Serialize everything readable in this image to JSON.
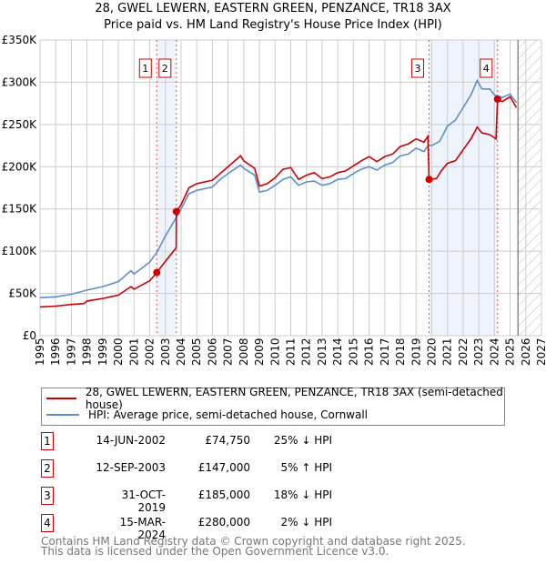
{
  "chart_data": {
    "type": "line",
    "title": "28, GWEL LEWERN, EASTERN GREEN, PENZANCE, TR18 3AX",
    "subtitle": "Price paid vs. HM Land Registry's House Price Index (HPI)",
    "xlim": [
      1995,
      2027
    ],
    "ylim": [
      0,
      350000
    ],
    "y_ticks": [
      {
        "v": 0,
        "label": "£0"
      },
      {
        "v": 50000,
        "label": "£50K"
      },
      {
        "v": 100000,
        "label": "£100K"
      },
      {
        "v": 150000,
        "label": "£150K"
      },
      {
        "v": 200000,
        "label": "£200K"
      },
      {
        "v": 250000,
        "label": "£250K"
      },
      {
        "v": 300000,
        "label": "£300K"
      },
      {
        "v": 350000,
        "label": "£350K"
      }
    ],
    "x_ticks": [
      "1995",
      "1996",
      "1997",
      "1998",
      "1999",
      "2000",
      "2001",
      "2002",
      "2003",
      "2004",
      "2005",
      "2006",
      "2007",
      "2008",
      "2009",
      "2010",
      "2011",
      "2012",
      "2013",
      "2014",
      "2015",
      "2016",
      "2017",
      "2018",
      "2019",
      "2020",
      "2021",
      "2022",
      "2023",
      "2024",
      "2025",
      "2026",
      "2027"
    ],
    "forecast_start": 2025.5,
    "shaded_ranges": [
      [
        2002.45,
        2003.7
      ],
      [
        2019.83,
        2024.2
      ]
    ],
    "series": [
      {
        "name": "28, GWEL LEWERN, EASTERN GREEN, PENZANCE, TR18 3AX (semi-detached house)",
        "color": "#cc0000",
        "x": [
          1995,
          1996,
          1997,
          1997.8,
          1998,
          1999,
          2000,
          2000.8,
          2001,
          2001.5,
          2002,
          2002.45,
          2003,
          2003.69,
          2003.7,
          2004,
          2004.5,
          2005,
          2006,
          2006.5,
          2007,
          2007.8,
          2008,
          2008.7,
          2009,
          2009.5,
          2010,
          2010.5,
          2011,
          2011.5,
          2012,
          2012.5,
          2013,
          2013.5,
          2014,
          2014.5,
          2015,
          2015.5,
          2016,
          2016.5,
          2017,
          2017.5,
          2018,
          2018.5,
          2019,
          2019.5,
          2019.75,
          2019.83,
          2020.3,
          2020.6,
          2021,
          2021.5,
          2022,
          2022.5,
          2022.9,
          2023.2,
          2023.7,
          2024.1,
          2024.2,
          2024.5,
          2025,
          2025.4
        ],
        "y": [
          34000,
          35000,
          37000,
          38000,
          41000,
          44000,
          48000,
          58000,
          55000,
          60000,
          65000,
          74750,
          88000,
          104000,
          147000,
          155000,
          175000,
          180000,
          184000,
          192000,
          200000,
          213000,
          207000,
          198000,
          177000,
          180000,
          187000,
          197000,
          199000,
          185000,
          190000,
          193000,
          186000,
          188000,
          193000,
          195000,
          201000,
          207000,
          212000,
          206000,
          212000,
          215000,
          224000,
          227000,
          233000,
          229000,
          236000,
          185000,
          186000,
          195000,
          204000,
          207000,
          220000,
          233000,
          247000,
          240000,
          238000,
          233000,
          280000,
          277000,
          283000,
          270000
        ]
      },
      {
        "name": "HPI: Average price, semi-detached house, Cornwall",
        "color": "#5b8fd0",
        "x": [
          1995,
          1996,
          1997,
          1998,
          1999,
          2000,
          2000.8,
          2001,
          2001.5,
          2002,
          2002.5,
          2003,
          2003.7,
          2004,
          2004.5,
          2005,
          2006,
          2006.5,
          2007,
          2007.8,
          2008,
          2008.7,
          2009,
          2009.5,
          2010,
          2010.5,
          2011,
          2011.5,
          2012,
          2012.5,
          2013,
          2013.5,
          2014,
          2014.5,
          2015,
          2015.5,
          2016,
          2016.5,
          2017,
          2017.5,
          2018,
          2018.5,
          2019,
          2019.5,
          2019.8,
          2020,
          2020.5,
          2021,
          2021.5,
          2022,
          2022.5,
          2022.9,
          2023.2,
          2023.7,
          2024,
          2024.5,
          2025,
          2025.4
        ],
        "y": [
          45000,
          46000,
          49000,
          54000,
          58000,
          64000,
          77000,
          73000,
          80000,
          87000,
          100000,
          118000,
          140000,
          150000,
          168000,
          172000,
          176000,
          185000,
          192000,
          202000,
          198000,
          190000,
          170000,
          172000,
          178000,
          185000,
          188000,
          178000,
          182000,
          183000,
          178000,
          180000,
          185000,
          186000,
          192000,
          197000,
          200000,
          196000,
          202000,
          205000,
          213000,
          215000,
          222000,
          218000,
          226000,
          225000,
          230000,
          248000,
          255000,
          270000,
          285000,
          302000,
          292000,
          292000,
          285000,
          282000,
          286000,
          276000
        ]
      }
    ],
    "sales": [
      {
        "n": "1",
        "date": "14-JUN-2002",
        "x": 2002.45,
        "price": 74750,
        "price_label": "£74,750",
        "hpi": "25% ↓ HPI"
      },
      {
        "n": "2",
        "date": "12-SEP-2003",
        "x": 2003.7,
        "price": 147000,
        "price_label": "£147,000",
        "hpi": "5% ↑ HPI"
      },
      {
        "n": "3",
        "date": "31-OCT-2019",
        "x": 2019.83,
        "price": 185000,
        "price_label": "£185,000",
        "hpi": "18% ↓ HPI"
      },
      {
        "n": "4",
        "date": "15-MAR-2024",
        "x": 2024.2,
        "price": 280000,
        "price_label": "£280,000",
        "hpi": "2% ↓ HPI"
      }
    ]
  },
  "legend": {
    "property": "28, GWEL LEWERN, EASTERN GREEN, PENZANCE, TR18 3AX (semi-detached house)",
    "hpi": "HPI: Average price, semi-detached house, Cornwall"
  },
  "footer": {
    "line1": "Contains HM Land Registry data © Crown copyright and database right 2025.",
    "line2": "This data is licensed under the Open Government Licence v3.0."
  }
}
